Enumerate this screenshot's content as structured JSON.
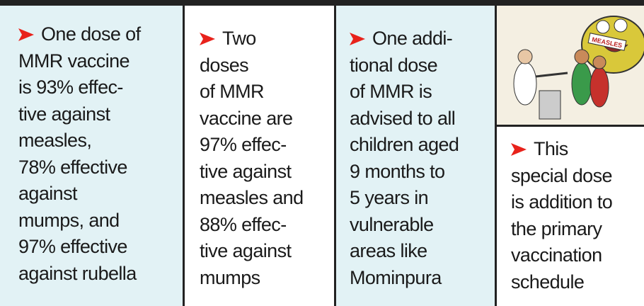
{
  "columns": [
    {
      "lines": [
        "One dose of",
        "MMR vaccine",
        "is 93% effec-",
        "tive against",
        "measles,",
        "78% effective",
        "against",
        "mumps, and",
        "97% effective",
        "against rubella"
      ]
    },
    {
      "lines": [
        "Two",
        "doses",
        "of MMR",
        "vaccine are",
        "97% effec-",
        "tive against",
        "measles and",
        "88% effec-",
        "tive against",
        "mumps"
      ]
    },
    {
      "lines": [
        "One addi-",
        "tional dose",
        "of MMR is",
        "advised to all",
        "children aged",
        "9 months to",
        "5 years in",
        "vulnerable",
        "areas like",
        "Mominpura"
      ]
    },
    {
      "lines": [
        "This",
        "special dose",
        "is addition to",
        "the primary",
        "vaccination",
        "schedule"
      ]
    }
  ],
  "illustration": {
    "label": "MEASLES"
  }
}
